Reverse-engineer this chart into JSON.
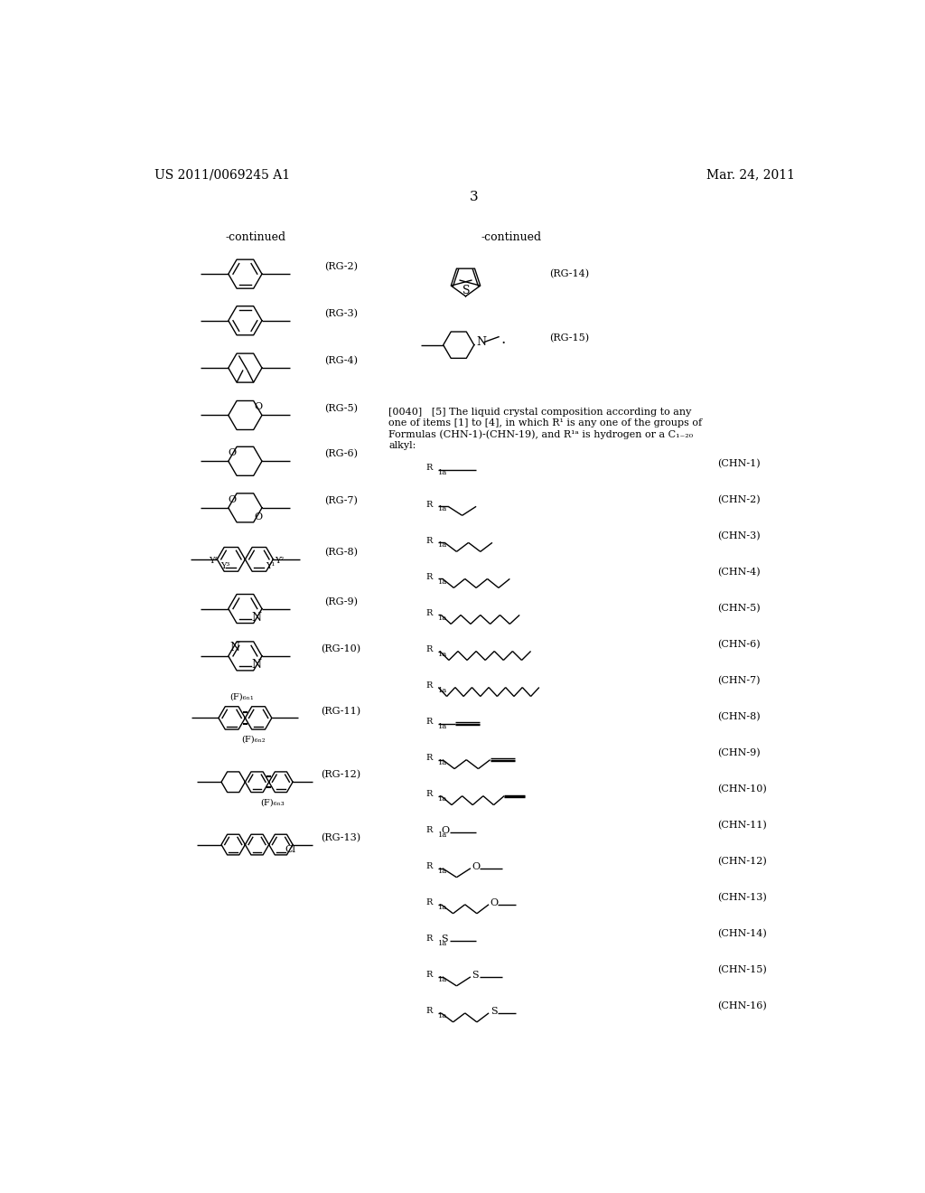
{
  "page_number": "3",
  "patent_number": "US 2011/0069245 A1",
  "date": "Mar. 24, 2011",
  "bg_color": "#ffffff"
}
